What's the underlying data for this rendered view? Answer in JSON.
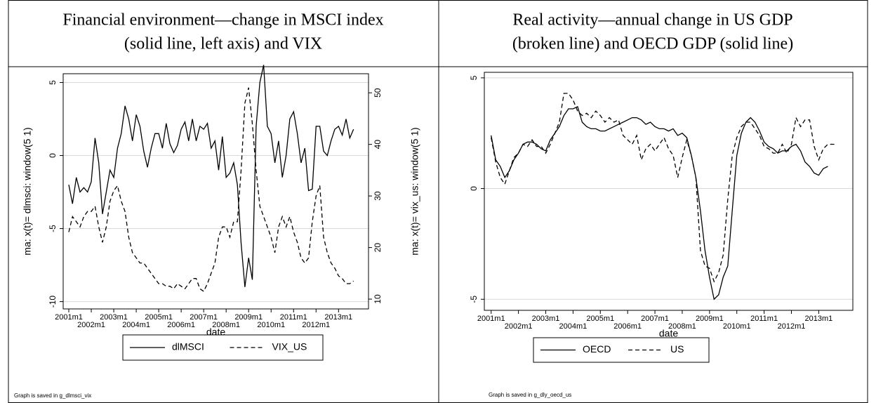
{
  "chart_data": [
    {
      "type": "line",
      "title": [
        "Financial environment—change in MSCI index",
        "(solid line, left axis) and VIX"
      ],
      "ylabel": "ma: x(t)= dlmsci: window(5 1)",
      "y2label": "ma: x(t)= vix_us: window(5 1)",
      "xlabel": "date",
      "note": "Graph is saved in g_dlmsci_vix",
      "grid": true,
      "xlim": [
        "2000m10",
        "2014m5"
      ],
      "xticks": [
        "2001m1",
        "2002m1",
        "2003m1",
        "2004m1",
        "2005m1",
        "2006m1",
        "2007m1",
        "2008m1",
        "2009m1",
        "2010m1",
        "2011m1",
        "2012m1",
        "2013m1"
      ],
      "ylim": [
        -10.5,
        5.6
      ],
      "yticks": [
        -10,
        -5,
        0,
        5
      ],
      "y2lim": [
        8.1,
        53.7
      ],
      "y2ticks": [
        10,
        20,
        30,
        40,
        50
      ],
      "x": [
        "2001m1",
        "2001m3",
        "2001m5",
        "2001m7",
        "2001m9",
        "2001m11",
        "2002m1",
        "2002m3",
        "2002m5",
        "2002m7",
        "2002m9",
        "2002m11",
        "2003m1",
        "2003m3",
        "2003m5",
        "2003m7",
        "2003m9",
        "2003m11",
        "2004m1",
        "2004m3",
        "2004m5",
        "2004m7",
        "2004m9",
        "2004m11",
        "2005m1",
        "2005m3",
        "2005m5",
        "2005m7",
        "2005m9",
        "2005m11",
        "2006m1",
        "2006m3",
        "2006m5",
        "2006m7",
        "2006m9",
        "2006m11",
        "2007m1",
        "2007m3",
        "2007m5",
        "2007m7",
        "2007m9",
        "2007m11",
        "2008m1",
        "2008m3",
        "2008m5",
        "2008m7",
        "2008m9",
        "2008m11",
        "2009m1",
        "2009m3",
        "2009m5",
        "2009m7",
        "2009m9",
        "2009m11",
        "2010m1",
        "2010m3",
        "2010m5",
        "2010m7",
        "2010m9",
        "2010m11",
        "2011m1",
        "2011m3",
        "2011m5",
        "2011m7",
        "2011m9",
        "2011m11",
        "2012m1",
        "2012m3",
        "2012m5",
        "2012m7",
        "2012m9",
        "2012m11",
        "2013m1",
        "2013m3",
        "2013m5",
        "2013m7",
        "2013m9"
      ],
      "series": [
        {
          "name": "dlMSCI",
          "color": "#000000",
          "dash": "solid",
          "values": [
            -2,
            -3.3,
            -1.5,
            -2.5,
            -2.2,
            -2.5,
            -1.8,
            1.2,
            -0.5,
            -4,
            -2.5,
            -1,
            -1.5,
            0.5,
            1.5,
            3.4,
            2.5,
            1,
            2.8,
            2,
            0.3,
            -0.8,
            0.5,
            1.5,
            1.5,
            0.5,
            2.2,
            0.8,
            0.2,
            0.7,
            1.8,
            2.3,
            1,
            2.5,
            1,
            2,
            1.8,
            2.2,
            0.5,
            1,
            -1,
            1.3,
            -1.5,
            -1.2,
            -0.5,
            -2,
            -6,
            -9,
            -7,
            -8.5,
            2,
            5,
            6.2,
            2,
            1.5,
            -0.5,
            1,
            -1.5,
            0,
            2.5,
            3,
            1.5,
            -0.5,
            0.5,
            -2.4,
            -2.3,
            2,
            2,
            0.3,
            0,
            1,
            1.8,
            2,
            1.4,
            2.5,
            1.2,
            1.8
          ]
        },
        {
          "name": "VIX_US",
          "color": "#000000",
          "dash": "dashed",
          "axis": "y2",
          "values": [
            23,
            26,
            25,
            24,
            26,
            27,
            27,
            28,
            24,
            21,
            24,
            29,
            31,
            32,
            29,
            27,
            22,
            19,
            18,
            17,
            17,
            16,
            15,
            14,
            13,
            13,
            12.5,
            12.5,
            12,
            13,
            12.5,
            12,
            13,
            14,
            14,
            12,
            11.5,
            13,
            15,
            17,
            22,
            24,
            24,
            22,
            25,
            25,
            35,
            48,
            51,
            44,
            35,
            28,
            26,
            24,
            22,
            19,
            24,
            26,
            24,
            26,
            23,
            21,
            18,
            17,
            18,
            25,
            30,
            32,
            22,
            19,
            17,
            16,
            14.5,
            14,
            13,
            13,
            13.5
          ]
        }
      ]
    },
    {
      "type": "line",
      "title": [
        "Real activity—annual change in US GDP",
        "(broken line) and OECD GDP (solid line)"
      ],
      "xlabel": "date",
      "note": "Graph is saved in g_dly_oecd_us",
      "grid": true,
      "xlim": [
        "2000m10",
        "2014m4"
      ],
      "xticks": [
        "2001m1",
        "2002m1",
        "2003m1",
        "2004m1",
        "2005m1",
        "2006m1",
        "2007m1",
        "2008m1",
        "2009m1",
        "2010m1",
        "2011m1",
        "2012m1",
        "2013m1"
      ],
      "ylim": [
        -5.5,
        5.25
      ],
      "yticks": [
        -5,
        0,
        5
      ],
      "x": [
        "2001m1",
        "2001m3",
        "2001m5",
        "2001m7",
        "2001m9",
        "2001m11",
        "2002m1",
        "2002m3",
        "2002m5",
        "2002m7",
        "2002m9",
        "2002m11",
        "2003m1",
        "2003m3",
        "2003m5",
        "2003m7",
        "2003m9",
        "2003m11",
        "2004m1",
        "2004m3",
        "2004m5",
        "2004m7",
        "2004m9",
        "2004m11",
        "2005m1",
        "2005m3",
        "2005m5",
        "2005m7",
        "2005m9",
        "2005m11",
        "2006m1",
        "2006m3",
        "2006m5",
        "2006m7",
        "2006m9",
        "2006m11",
        "2007m1",
        "2007m3",
        "2007m5",
        "2007m7",
        "2007m9",
        "2007m11",
        "2008m1",
        "2008m3",
        "2008m5",
        "2008m7",
        "2008m9",
        "2008m11",
        "2009m1",
        "2009m3",
        "2009m5",
        "2009m7",
        "2009m9",
        "2009m11",
        "2010m1",
        "2010m3",
        "2010m5",
        "2010m7",
        "2010m9",
        "2010m11",
        "2011m1",
        "2011m3",
        "2011m5",
        "2011m7",
        "2011m9",
        "2011m11",
        "2012m1",
        "2012m3",
        "2012m5",
        "2012m7",
        "2012m9",
        "2012m11",
        "2013m1",
        "2013m3",
        "2013m5",
        "2013m7",
        "2013m9"
      ],
      "series": [
        {
          "name": "OECD",
          "color": "#000000",
          "dash": "solid",
          "values": [
            2.4,
            1.3,
            1.0,
            0.5,
            0.8,
            1.3,
            1.6,
            2.0,
            2.1,
            2.1,
            2.0,
            1.8,
            1.7,
            2.2,
            2.5,
            2.8,
            3.3,
            3.6,
            3.6,
            3.7,
            3.0,
            2.8,
            2.7,
            2.7,
            2.6,
            2.6,
            2.7,
            2.8,
            2.9,
            3.0,
            3.1,
            3.2,
            3.2,
            3.1,
            2.9,
            3.0,
            2.8,
            2.7,
            2.7,
            2.6,
            2.7,
            2.4,
            2.5,
            2.3,
            1.5,
            0.5,
            -1.0,
            -2.8,
            -4.0,
            -5.0,
            -4.8,
            -4.0,
            -3.5,
            -1.0,
            1.5,
            2.5,
            3.0,
            3.2,
            3.0,
            2.6,
            2.1,
            1.9,
            1.8,
            1.6,
            1.7,
            1.7,
            1.9,
            2.0,
            1.7,
            1.2,
            1.0,
            0.7,
            0.6,
            0.9,
            1.0,
            null,
            null
          ]
        },
        {
          "name": "US",
          "color": "#000000",
          "dash": "dashed",
          "values": [
            2.3,
            1.2,
            0.5,
            0.2,
            0.8,
            1.4,
            1.6,
            2.0,
            1.9,
            2.2,
            1.9,
            1.9,
            1.6,
            2.0,
            2.5,
            3.0,
            4.3,
            4.3,
            4.0,
            3.5,
            3.3,
            3.4,
            3.2,
            3.5,
            3.3,
            3.0,
            3.2,
            3.0,
            3.1,
            2.4,
            2.2,
            2.0,
            2.4,
            1.3,
            1.8,
            2.0,
            1.7,
            2.0,
            2.3,
            1.8,
            1.5,
            0.5,
            1.4,
            2.2,
            1.5,
            0.5,
            -2.8,
            -3.5,
            -3.6,
            -4.2,
            -3.8,
            -3.0,
            -0.5,
            1.5,
            2.3,
            2.8,
            3.0,
            3.0,
            2.7,
            2.4,
            1.9,
            1.8,
            1.6,
            1.6,
            2.0,
            1.6,
            2.0,
            3.2,
            2.8,
            3.1,
            3.1,
            1.9,
            1.3,
            1.8,
            2.0,
            2.0,
            2.0
          ]
        }
      ]
    }
  ]
}
